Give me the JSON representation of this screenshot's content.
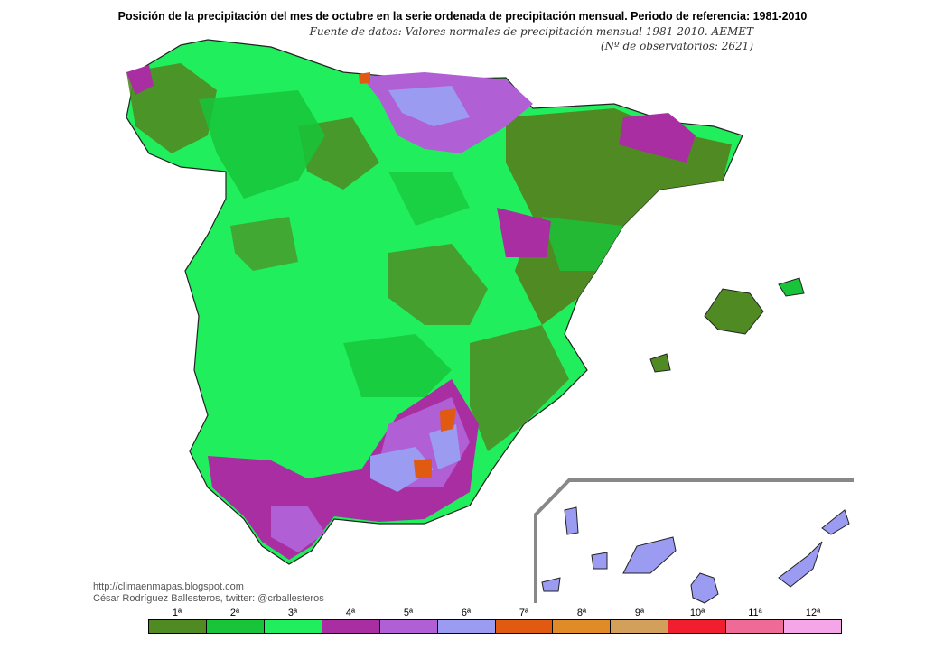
{
  "map": {
    "title": "Posición de la precipitación del mes de octubre en la serie ordenada de precipitación mensual. Periodo de referencia: 1981-2010",
    "source_line1": "Fuente de datos: Valores normales de precipitación mensual 1981-2010. AEMET",
    "source_line2": "(Nº de observatorios: 2621)",
    "credit_url": "http://climaenmapas.blogspot.com",
    "credit_author": "César Rodríguez Ballesteros, twitter: @crballesteros"
  },
  "legend": [
    {
      "label": "1ª",
      "color": "#4f8a22"
    },
    {
      "label": "2ª",
      "color": "#18c43a"
    },
    {
      "label": "3ª",
      "color": "#21ee5c"
    },
    {
      "label": "4ª",
      "color": "#a92ea2"
    },
    {
      "label": "5ª",
      "color": "#b15fd4"
    },
    {
      "label": "6ª",
      "color": "#9b9bf2"
    },
    {
      "label": "7ª",
      "color": "#e05a12"
    },
    {
      "label": "8ª",
      "color": "#e08a28"
    },
    {
      "label": "9ª",
      "color": "#d2a05a"
    },
    {
      "label": "10ª",
      "color": "#f01e2e"
    },
    {
      "label": "11ª",
      "color": "#f06a98"
    },
    {
      "label": "12ª",
      "color": "#f5a6e8"
    }
  ]
}
